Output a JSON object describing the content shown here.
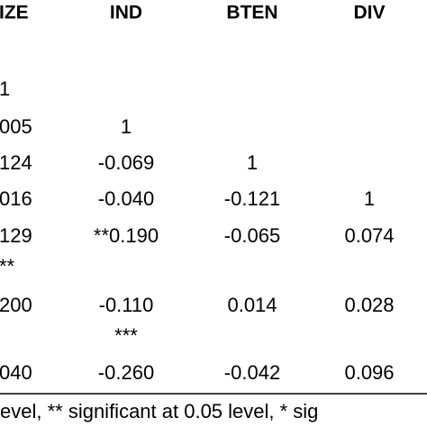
{
  "table": {
    "header": [
      "IZE",
      "IND",
      "BTEN",
      "DIV"
    ],
    "rows": [
      [
        "1",
        null,
        null,
        null
      ],
      [
        "005",
        "1",
        null,
        null
      ],
      [
        "124",
        "-0.069",
        "1",
        null
      ],
      [
        "016",
        "-0.040",
        "-0.121",
        "1"
      ],
      [
        "129",
        "**0.190",
        "-0.065",
        "0.074"
      ],
      [
        "**",
        null,
        null,
        null
      ],
      [
        "200",
        "-0.110",
        "0.014",
        "0.028"
      ],
      [
        null,
        "***",
        null,
        null
      ],
      [
        "040",
        "-0.260",
        "-0.042",
        "0.096"
      ]
    ],
    "footnote": "evel, ** significant at 0.05 level, * sig"
  }
}
